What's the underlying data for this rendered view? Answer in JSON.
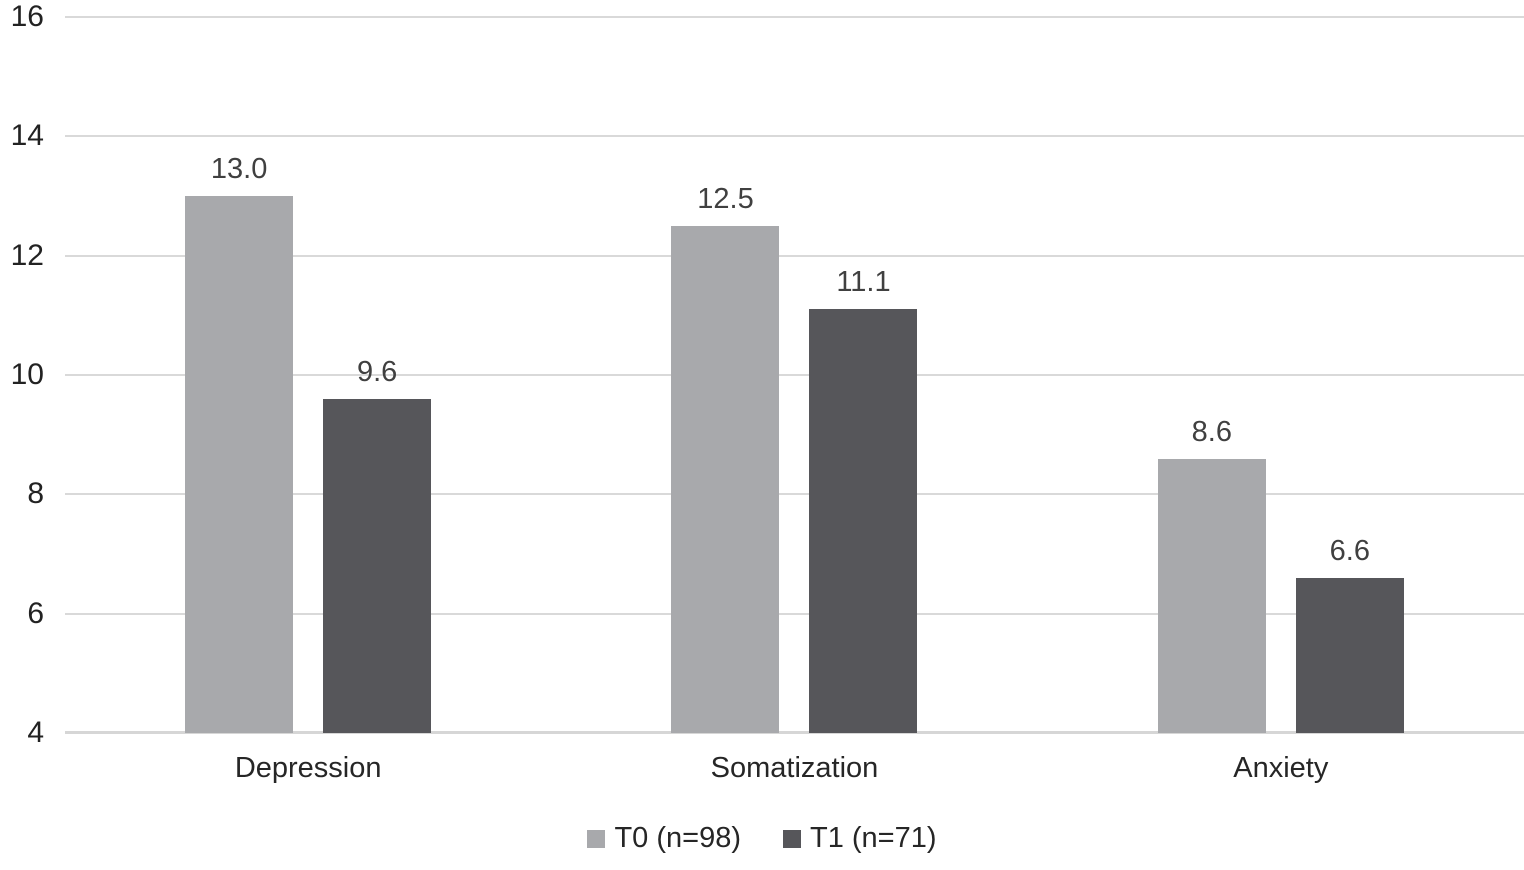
{
  "chart_data": {
    "type": "bar",
    "title": "",
    "xlabel": "",
    "ylabel": "",
    "categories": [
      "Depression",
      "Somatization",
      "Anxiety"
    ],
    "series": [
      {
        "name": "T0 (n=98)",
        "values": [
          13.0,
          12.5,
          8.6
        ],
        "display": [
          "13.0",
          "12.5",
          "8.6"
        ],
        "color": "#a8a9ac"
      },
      {
        "name": "T1 (n=71)",
        "values": [
          9.6,
          11.1,
          6.6
        ],
        "display": [
          "9.6",
          "11.1",
          "6.6"
        ],
        "color": "#56565a"
      }
    ],
    "ylim": [
      4,
      16
    ],
    "yticks": [
      4,
      6,
      8,
      10,
      12,
      14,
      16
    ],
    "grid": true,
    "grid_color": "#d9d9d9",
    "legend_position": "bottom"
  }
}
